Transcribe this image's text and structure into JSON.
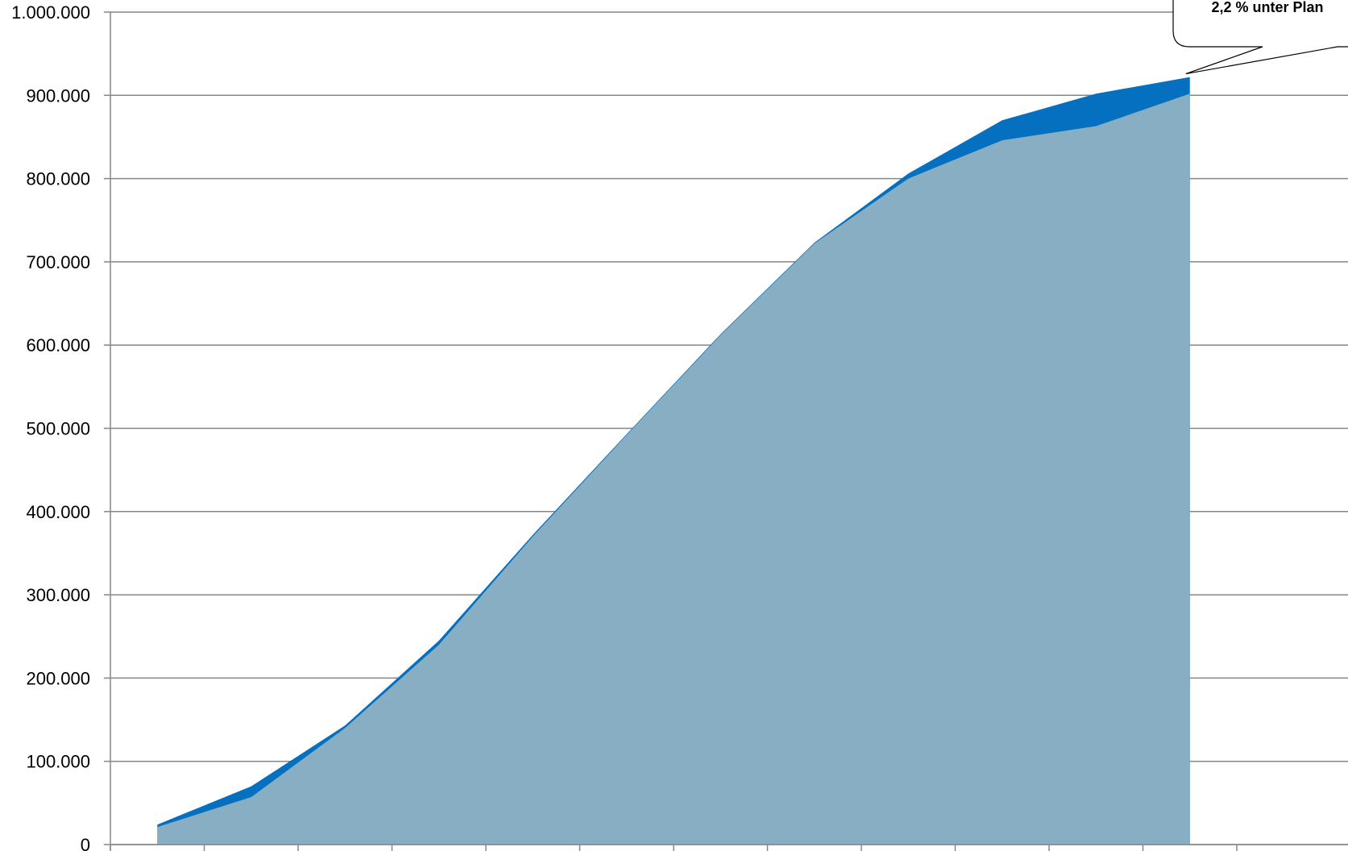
{
  "chart_data": {
    "type": "area",
    "y_tick_labels": [
      "0",
      "100.000",
      "200.000",
      "300.000",
      "400.000",
      "500.000",
      "600.000",
      "700.000",
      "800.000",
      "900.000",
      "1.000.000"
    ],
    "ylim": [
      0,
      1000000
    ],
    "x": [
      1,
      2,
      3,
      4,
      5,
      6,
      7,
      8,
      9,
      10,
      11,
      12
    ],
    "xlim": [
      0.5,
      12.5
    ],
    "grid": true,
    "series": [
      {
        "key": "upper",
        "color": "#0570c0",
        "values": [
          24000,
          70000,
          143000,
          245000,
          372000,
          493000,
          613000,
          723000,
          806000,
          870000,
          902000,
          922000
        ]
      },
      {
        "key": "lower",
        "color": "#87aec3",
        "values": [
          21000,
          57000,
          140000,
          240000,
          370000,
          492000,
          612000,
          722000,
          800000,
          846000,
          863000,
          902000
        ]
      }
    ],
    "annotation": {
      "text": "2,2 % unter Plan",
      "target_index": 11
    }
  }
}
